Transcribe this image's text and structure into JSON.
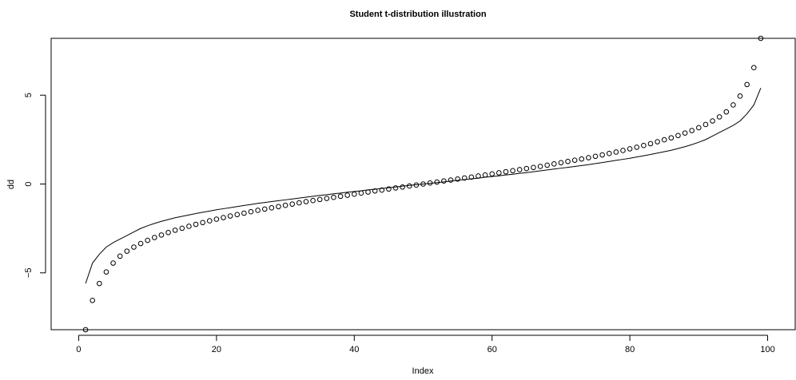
{
  "chart_data": {
    "type": "scatter",
    "title": "Student t-distribution illustration",
    "xlabel": "Index",
    "ylabel": "dd",
    "xlim": [
      0,
      100
    ],
    "ylim": [
      -8.2,
      8.2
    ],
    "x_ticks": [
      0,
      20,
      40,
      60,
      80,
      100
    ],
    "y_ticks": [
      -5,
      0,
      5
    ],
    "grid": false,
    "series": [
      {
        "type": "scatter",
        "marker": "open-circle",
        "x": [
          1,
          2,
          3,
          4,
          5,
          6,
          7,
          8,
          9,
          10,
          11,
          12,
          13,
          14,
          15,
          16,
          17,
          18,
          19,
          20,
          21,
          22,
          23,
          24,
          25,
          26,
          27,
          28,
          29,
          30,
          31,
          32,
          33,
          34,
          35,
          36,
          37,
          38,
          39,
          40,
          41,
          42,
          43,
          44,
          45,
          46,
          47,
          48,
          49,
          50,
          51,
          52,
          53,
          54,
          55,
          56,
          57,
          58,
          59,
          60,
          61,
          62,
          63,
          64,
          65,
          66,
          67,
          68,
          69,
          70,
          71,
          72,
          73,
          74,
          75,
          76,
          77,
          78,
          79,
          80,
          81,
          82,
          83,
          84,
          85,
          86,
          87,
          88,
          89,
          90,
          91,
          92,
          93,
          94,
          95,
          96,
          97,
          98,
          99
        ],
        "values": [
          -8.2,
          -6.55,
          -5.6,
          -4.95,
          -4.45,
          -4.06,
          -3.78,
          -3.55,
          -3.35,
          -3.17,
          -3.01,
          -2.87,
          -2.73,
          -2.6,
          -2.49,
          -2.38,
          -2.27,
          -2.17,
          -2.07,
          -1.98,
          -1.89,
          -1.8,
          -1.72,
          -1.64,
          -1.56,
          -1.48,
          -1.41,
          -1.34,
          -1.27,
          -1.2,
          -1.13,
          -1.06,
          -0.99,
          -0.93,
          -0.87,
          -0.81,
          -0.75,
          -0.69,
          -0.63,
          -0.57,
          -0.51,
          -0.45,
          -0.39,
          -0.34,
          -0.28,
          -0.22,
          -0.17,
          -0.11,
          -0.06,
          0.0,
          0.06,
          0.11,
          0.17,
          0.22,
          0.28,
          0.34,
          0.39,
          0.45,
          0.51,
          0.57,
          0.63,
          0.69,
          0.75,
          0.81,
          0.87,
          0.93,
          0.99,
          1.06,
          1.13,
          1.2,
          1.27,
          1.34,
          1.41,
          1.48,
          1.56,
          1.64,
          1.72,
          1.8,
          1.89,
          1.98,
          2.07,
          2.17,
          2.27,
          2.38,
          2.49,
          2.6,
          2.73,
          2.87,
          3.01,
          3.17,
          3.35,
          3.55,
          3.78,
          4.06,
          4.45,
          4.95,
          5.6,
          6.55,
          8.2
        ]
      },
      {
        "type": "line",
        "x": [
          1,
          2,
          3,
          4,
          5,
          6,
          7,
          8,
          9,
          10,
          11,
          12,
          13,
          14,
          15,
          16,
          17,
          18,
          19,
          20,
          21,
          22,
          23,
          24,
          25,
          26,
          27,
          28,
          29,
          30,
          31,
          32,
          33,
          34,
          35,
          36,
          37,
          38,
          39,
          40,
          41,
          42,
          43,
          44,
          45,
          46,
          47,
          48,
          49,
          50,
          51,
          52,
          53,
          54,
          55,
          56,
          57,
          58,
          59,
          60,
          61,
          62,
          63,
          64,
          65,
          66,
          67,
          68,
          69,
          70,
          71,
          72,
          73,
          74,
          75,
          76,
          77,
          78,
          79,
          80,
          81,
          82,
          83,
          84,
          85,
          86,
          87,
          88,
          89,
          90,
          91,
          92,
          93,
          94,
          95,
          96,
          97,
          98,
          99
        ],
        "values": [
          -5.6,
          -4.45,
          -3.95,
          -3.55,
          -3.3,
          -3.1,
          -2.9,
          -2.7,
          -2.5,
          -2.35,
          -2.22,
          -2.1,
          -2.0,
          -1.9,
          -1.82,
          -1.74,
          -1.66,
          -1.59,
          -1.52,
          -1.45,
          -1.39,
          -1.33,
          -1.27,
          -1.21,
          -1.15,
          -1.09,
          -1.04,
          -0.99,
          -0.94,
          -0.89,
          -0.84,
          -0.79,
          -0.74,
          -0.69,
          -0.64,
          -0.6,
          -0.55,
          -0.51,
          -0.46,
          -0.42,
          -0.38,
          -0.33,
          -0.29,
          -0.25,
          -0.21,
          -0.17,
          -0.12,
          -0.08,
          -0.04,
          0.0,
          0.04,
          0.08,
          0.12,
          0.17,
          0.21,
          0.25,
          0.29,
          0.33,
          0.38,
          0.42,
          0.46,
          0.51,
          0.55,
          0.6,
          0.64,
          0.69,
          0.74,
          0.79,
          0.84,
          0.89,
          0.94,
          0.99,
          1.04,
          1.09,
          1.15,
          1.21,
          1.27,
          1.33,
          1.39,
          1.45,
          1.52,
          1.59,
          1.66,
          1.74,
          1.82,
          1.9,
          2.0,
          2.1,
          2.22,
          2.35,
          2.5,
          2.7,
          2.9,
          3.1,
          3.3,
          3.55,
          3.95,
          4.45,
          5.4
        ]
      }
    ]
  }
}
